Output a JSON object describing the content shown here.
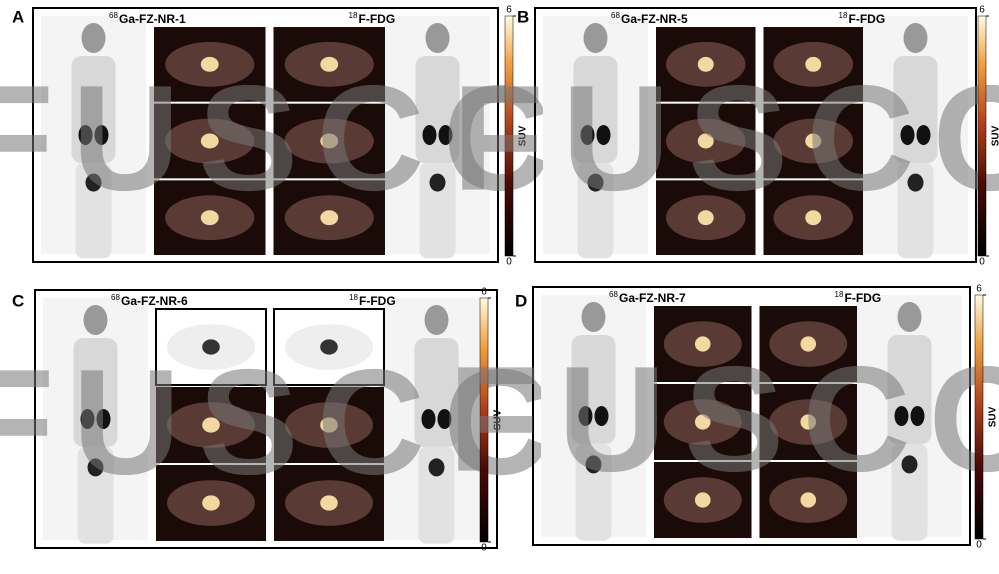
{
  "panels": [
    {
      "label": "A",
      "tracer_1": {
        "mass": "68",
        "name": "Ga-FZ-NR-1"
      },
      "tracer_2": {
        "mass": "18",
        "name": "F-FDG"
      },
      "colorbar": {
        "max": 6,
        "min": 0,
        "label": "SUV"
      },
      "watermark": "FUSCC"
    },
    {
      "label": "B",
      "tracer_1": {
        "mass": "68",
        "name": "Ga-FZ-NR-5"
      },
      "tracer_2": {
        "mass": "18",
        "name": "F-FDG"
      },
      "colorbar": {
        "max": 6,
        "min": 0,
        "label": "SUV"
      },
      "watermark": "FUSCC"
    },
    {
      "label": "C",
      "tracer_1": {
        "mass": "68",
        "name": "Ga-FZ-NR-6"
      },
      "tracer_2": {
        "mass": "18",
        "name": "F-FDG"
      },
      "colorbar": {
        "max": 6,
        "min": 0,
        "label": "SUV"
      },
      "watermark": "FUSCC"
    },
    {
      "label": "D",
      "tracer_1": {
        "mass": "68",
        "name": "Ga-FZ-NR-7"
      },
      "tracer_2": {
        "mass": "18",
        "name": "F-FDG"
      },
      "colorbar": {
        "max": 6,
        "min": 0,
        "label": "SUV"
      },
      "watermark": "FUSCC"
    }
  ]
}
